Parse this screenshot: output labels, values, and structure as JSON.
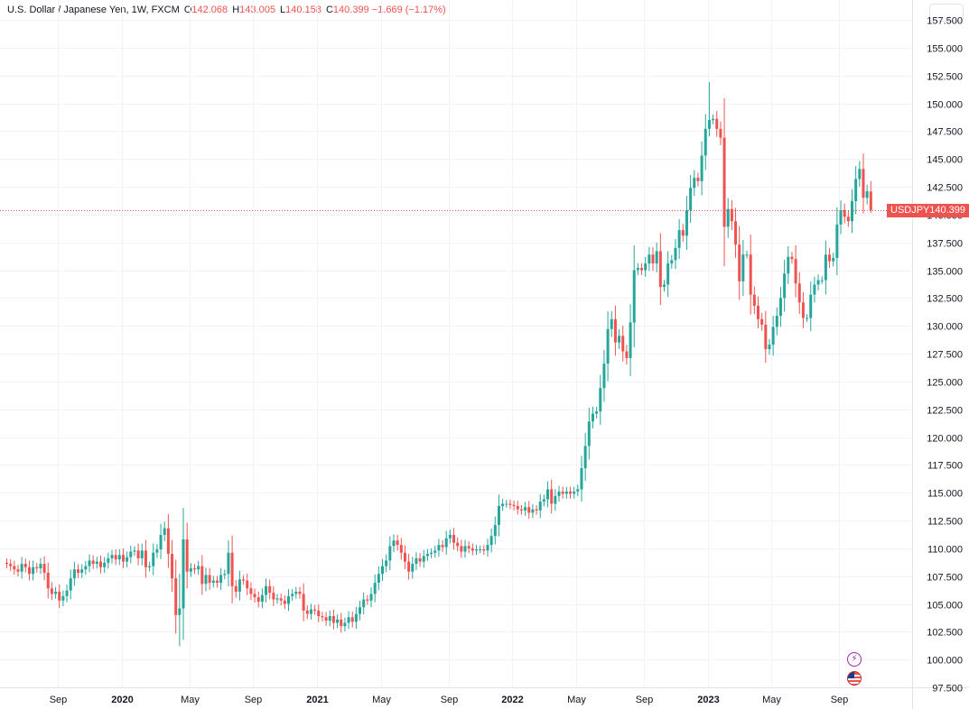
{
  "legend": {
    "title": "U.S. Dollar / Japanese Yen, 1W, FXCM",
    "open_label": "O",
    "open_value": "142.068",
    "high_label": "H",
    "high_value": "143.005",
    "low_label": "L",
    "low_value": "140.158",
    "close_label": "C",
    "close_value": "140.399",
    "change": "−1.669 (−1.17%)"
  },
  "price_tag": {
    "symbol": "USDJPY",
    "value": "140.399"
  },
  "colors": {
    "up": "#26a69a",
    "down": "#ef5350",
    "grid": "#f0f3fa",
    "text": "#131722",
    "axis_text": "#131722"
  },
  "icons": [
    "lightning-icon",
    "us-flag-icon"
  ],
  "chart_data": {
    "type": "candlestick",
    "ylim": [
      97.5,
      157.5
    ],
    "y_ticks": [
      "97.500",
      "100.000",
      "102.500",
      "105.000",
      "107.500",
      "110.000",
      "112.500",
      "115.000",
      "117.500",
      "120.000",
      "122.500",
      "125.000",
      "127.500",
      "130.000",
      "132.500",
      "135.000",
      "137.500",
      "140.000",
      "142.500",
      "145.000",
      "147.500",
      "150.000",
      "152.500",
      "155.000",
      "157.500"
    ],
    "x_ticks": [
      {
        "label": "Sep",
        "bold": false,
        "week": 0
      },
      {
        "label": "2020",
        "bold": true,
        "week": 17
      },
      {
        "label": "May",
        "bold": false,
        "week": 35
      },
      {
        "label": "Sep",
        "bold": false,
        "week": 52
      },
      {
        "label": "2021",
        "bold": true,
        "week": 69
      },
      {
        "label": "May",
        "bold": false,
        "week": 86
      },
      {
        "label": "Sep",
        "bold": false,
        "week": 104
      },
      {
        "label": "2022",
        "bold": true,
        "week": 121
      },
      {
        "label": "May",
        "bold": false,
        "week": 138
      },
      {
        "label": "Sep",
        "bold": false,
        "week": 156
      },
      {
        "label": "2023",
        "bold": true,
        "week": 173
      },
      {
        "label": "May",
        "bold": false,
        "week": 190
      },
      {
        "label": "Sep",
        "bold": false,
        "week": 208
      }
    ],
    "last_price": 140.399,
    "closes": [
      108.6,
      108.4,
      108.1,
      107.9,
      108.6,
      108.3,
      107.7,
      108.3,
      108.2,
      108.6,
      107.8,
      106.4,
      105.9,
      106.1,
      105.3,
      105.7,
      106.2,
      107.3,
      108.1,
      107.8,
      108.1,
      108.4,
      108.9,
      108.6,
      108.8,
      108.3,
      108.7,
      109.1,
      109.4,
      109.0,
      109.4,
      108.8,
      109.2,
      109.7,
      109.8,
      109.1,
      109.8,
      108.3,
      108.4,
      109.6,
      109.9,
      111.2,
      111.8,
      109.5,
      107.3,
      104.0,
      104.6,
      110.8,
      107.9,
      108.2,
      108.1,
      108.4,
      106.8,
      107.6,
      106.9,
      107.1,
      106.9,
      107.6,
      107.7,
      109.6,
      106.6,
      106.1,
      107.2,
      107.1,
      106.4,
      105.9,
      105.6,
      105.2,
      105.8,
      106.6,
      106.0,
      105.4,
      105.5,
      105.3,
      105.0,
      105.7,
      105.9,
      106.1,
      105.9,
      104.4,
      104.1,
      104.5,
      104.4,
      103.9,
      103.8,
      103.5,
      103.9,
      103.3,
      103.6,
      103.0,
      103.3,
      103.8,
      103.4,
      104.1,
      104.7,
      105.4,
      105.3,
      105.9,
      106.9,
      107.7,
      108.4,
      108.9,
      110.2,
      110.7,
      110.3,
      109.6,
      108.8,
      107.9,
      108.6,
      109.1,
      108.8,
      109.3,
      109.5,
      109.6,
      109.8,
      110.3,
      110.1,
      110.9,
      111.2,
      110.5,
      110.2,
      109.7,
      110.2,
      110.0,
      109.8,
      109.9,
      109.9,
      109.8,
      110.3,
      111.1,
      112.1,
      113.8,
      114.0,
      114.0,
      113.9,
      113.8,
      113.5,
      113.4,
      113.7,
      113.2,
      113.5,
      113.4,
      114.2,
      114.4,
      115.3,
      114.0,
      114.7,
      115.1,
      114.9,
      115.1,
      114.9,
      115.1,
      115.3,
      117.2,
      119.2,
      121.4,
      122.1,
      122.3,
      124.4,
      126.6,
      129.7,
      130.6,
      128.5,
      129.1,
      127.7,
      127.1,
      130.3,
      135.0,
      135.2,
      135.0,
      135.6,
      136.4,
      135.6,
      136.7,
      133.5,
      133.7,
      135.6,
      135.9,
      137.0,
      138.6,
      138.1,
      140.4,
      142.4,
      143.3,
      143.0,
      145.3,
      147.7,
      148.5,
      148.6,
      147.7,
      146.9,
      138.9,
      140.5,
      139.4,
      137.3,
      134.0,
      136.4,
      136.4,
      132.8,
      131.8,
      130.6,
      130.1,
      127.9,
      128.3,
      129.9,
      130.9,
      132.5,
      134.7,
      136.2,
      136.0,
      133.8,
      132.1,
      130.7,
      130.7,
      132.8,
      133.7,
      134.1,
      134.1,
      136.4,
      135.8,
      136.1,
      139.1,
      140.4,
      139.8,
      139.4,
      141.2,
      143.2,
      144.1,
      141.5,
      142.1,
      140.4
    ],
    "opens": [
      108.7,
      108.6,
      108.4,
      108.1,
      107.9,
      108.6,
      108.3,
      107.7,
      108.3,
      108.2,
      108.6,
      107.8,
      106.4,
      105.9,
      106.1,
      105.3,
      105.7,
      106.2,
      107.3,
      108.1,
      107.8,
      108.1,
      108.4,
      108.9,
      108.6,
      108.8,
      108.3,
      108.7,
      109.1,
      109.4,
      109.0,
      109.4,
      108.8,
      109.2,
      109.7,
      109.8,
      109.1,
      109.8,
      108.3,
      108.4,
      109.6,
      109.9,
      111.2,
      111.8,
      109.5,
      107.3,
      104.0,
      104.6,
      110.8,
      107.9,
      108.2,
      108.1,
      108.4,
      106.8,
      107.6,
      106.9,
      107.1,
      106.9,
      107.6,
      107.7,
      109.6,
      106.6,
      106.1,
      107.2,
      107.1,
      106.4,
      105.9,
      105.6,
      105.2,
      105.8,
      106.6,
      106.0,
      105.4,
      105.5,
      105.3,
      105.0,
      105.7,
      105.9,
      106.1,
      105.9,
      104.4,
      104.1,
      104.5,
      104.4,
      103.9,
      103.8,
      103.5,
      103.9,
      103.3,
      103.6,
      103.0,
      103.3,
      103.8,
      103.4,
      104.1,
      104.7,
      105.4,
      105.3,
      105.9,
      106.9,
      107.7,
      108.4,
      108.9,
      110.2,
      110.7,
      110.3,
      109.6,
      108.8,
      107.9,
      108.6,
      109.1,
      108.8,
      109.3,
      109.5,
      109.6,
      109.8,
      110.3,
      110.1,
      110.9,
      111.2,
      110.5,
      110.2,
      109.7,
      110.2,
      110.0,
      109.8,
      109.9,
      109.9,
      109.8,
      110.3,
      111.1,
      112.1,
      113.8,
      114.0,
      114.0,
      113.9,
      113.8,
      113.5,
      113.4,
      113.7,
      113.2,
      113.5,
      113.4,
      114.2,
      114.4,
      115.3,
      114.0,
      114.7,
      115.1,
      114.9,
      115.1,
      114.9,
      115.1,
      115.3,
      117.2,
      119.2,
      121.4,
      122.1,
      122.3,
      124.4,
      126.6,
      129.7,
      130.6,
      128.5,
      129.1,
      127.7,
      127.1,
      130.3,
      135.0,
      135.2,
      135.0,
      135.6,
      136.4,
      135.6,
      136.7,
      133.5,
      133.7,
      135.6,
      135.9,
      137.0,
      138.6,
      138.1,
      140.4,
      142.4,
      143.3,
      143.0,
      145.3,
      147.7,
      148.5,
      148.6,
      147.7,
      146.9,
      138.9,
      140.5,
      139.4,
      137.3,
      134.0,
      136.4,
      136.4,
      132.8,
      131.8,
      130.6,
      130.1,
      127.9,
      128.3,
      129.9,
      130.9,
      132.5,
      134.7,
      136.2,
      136.0,
      133.8,
      132.1,
      130.7,
      130.7,
      132.8,
      133.7,
      134.1,
      134.1,
      136.4,
      135.8,
      136.1,
      139.1,
      140.4,
      139.8,
      139.4,
      141.2,
      143.2,
      144.1,
      141.5,
      142.07
    ]
  }
}
